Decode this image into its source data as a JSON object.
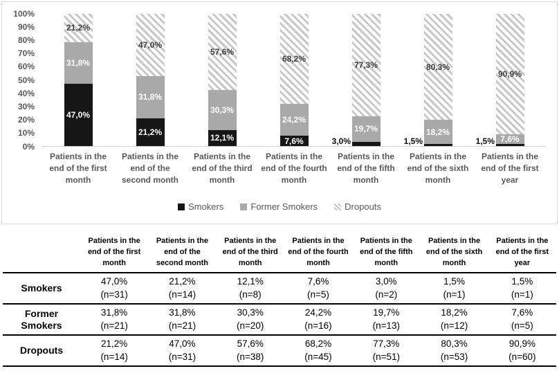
{
  "colors": {
    "smokers_fill": "#161616",
    "former_fill": "#a9a9a9",
    "hatch_stripe": "#c7c7c7",
    "hatch_bg": "#ffffff",
    "hatch_label": "#3b3b3b",
    "on_bar_label": "#ffffff",
    "axis_text": "#595959",
    "chart_border": "#d9d9d9",
    "table_line": "#000000"
  },
  "chart_data": {
    "type": "bar",
    "subtype": "100%-stacked-column",
    "title": "",
    "xlabel": "",
    "ylabel": "",
    "ylim": [
      0,
      100
    ],
    "grid": false,
    "legend_position": "bottom",
    "y_ticks": [
      "100%",
      "90%",
      "80%",
      "70%",
      "60%",
      "50%",
      "40%",
      "30%",
      "20%",
      "10%",
      "0%"
    ],
    "categories": [
      "Patients in the end of the first month",
      "Patients in the end of the second month",
      "Patients in the end of the third month",
      "Patients in the end of the fourth month",
      "Patients in the end of the fifth month",
      "Patients in the end of the sixth month",
      "Patients in the end of the first year"
    ],
    "series": [
      {
        "name": "Smokers",
        "style": "black",
        "values": [
          47.0,
          21.2,
          12.1,
          7.6,
          3.0,
          1.5,
          1.5
        ],
        "labels": [
          "47,0%",
          "21,2%",
          "12,1%",
          "7,6%",
          "3,0%",
          "1,5%",
          "1,5%"
        ],
        "n": [
          31,
          14,
          8,
          5,
          2,
          1,
          1
        ]
      },
      {
        "name": "Former Smokers",
        "style": "gray",
        "values": [
          31.8,
          31.8,
          30.3,
          24.2,
          19.7,
          18.2,
          7.6
        ],
        "labels": [
          "31,8%",
          "31,8%",
          "30,3%",
          "24,2%",
          "19,7%",
          "18,2%",
          "7,6%"
        ],
        "n": [
          21,
          21,
          20,
          16,
          13,
          12,
          5
        ]
      },
      {
        "name": "Dropouts",
        "style": "hatch",
        "values": [
          21.2,
          47.0,
          57.6,
          68.2,
          77.3,
          80.3,
          90.9
        ],
        "labels": [
          "21,2%",
          "47,0%",
          "57,6%",
          "68,2%",
          "77,3%",
          "80,3%",
          "90,9%"
        ],
        "n": [
          14,
          31,
          38,
          45,
          51,
          53,
          60
        ]
      }
    ],
    "legend": [
      "Smokers",
      "Former Smokers",
      "Dropouts"
    ]
  },
  "table": {
    "col_headers": [
      "Patients in the end of the first month",
      "Patients in the end of the second month",
      "Patients in the end of the third month",
      "Patients in the end of the fourth month",
      "Patients in the end of the fifth month",
      "Patients in the end of the sixth month",
      "Patients in the end of the first year"
    ],
    "rows": [
      {
        "label": "Smokers",
        "cells": [
          {
            "pct": "47,0%",
            "n": "(n=31)"
          },
          {
            "pct": "21,2%",
            "n": "(n=14)"
          },
          {
            "pct": "12,1%",
            "n": "(n=8)"
          },
          {
            "pct": "7,6%",
            "n": "(n=5)"
          },
          {
            "pct": "3,0%",
            "n": "(n=2)"
          },
          {
            "pct": "1,5%",
            "n": "(n=1)"
          },
          {
            "pct": "1,5%",
            "n": "(n=1)"
          }
        ]
      },
      {
        "label": "Former Smokers",
        "cells": [
          {
            "pct": "31,8%",
            "n": "(n=21)"
          },
          {
            "pct": "31,8%",
            "n": "(n=21)"
          },
          {
            "pct": "30,3%",
            "n": "(n=20)"
          },
          {
            "pct": "24,2%",
            "n": "(n=16)"
          },
          {
            "pct": "19,7%",
            "n": "(n=13)"
          },
          {
            "pct": "18,2%",
            "n": "(n=12)"
          },
          {
            "pct": "7,6%",
            "n": "(n=5)"
          }
        ]
      },
      {
        "label": "Dropouts",
        "cells": [
          {
            "pct": "21,2%",
            "n": "(n=14)"
          },
          {
            "pct": "47,0%",
            "n": "(n=31)"
          },
          {
            "pct": "57,6%",
            "n": "(n=38)"
          },
          {
            "pct": "68,2%",
            "n": "(n=45)"
          },
          {
            "pct": "77,3%",
            "n": "(n=51)"
          },
          {
            "pct": "80,3%",
            "n": "(n=53)"
          },
          {
            "pct": "90,9%",
            "n": "(n=60)"
          }
        ]
      }
    ]
  }
}
